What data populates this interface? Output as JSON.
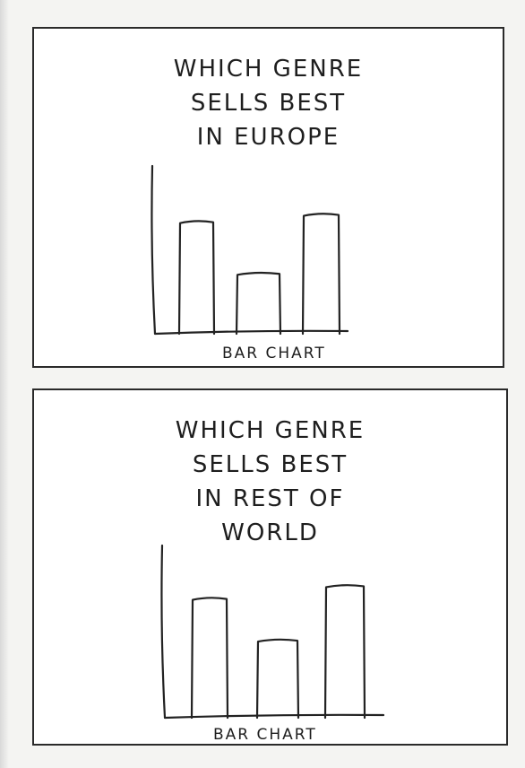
{
  "chart_data": [
    {
      "type": "bar",
      "title": "WHICH GENRE SELLS BEST IN EUROPE",
      "title_lines": [
        "WHICH GENRE",
        "SELLS BEST",
        "IN EUROPE"
      ],
      "xlabel": "BAR CHART",
      "categories": [
        "",
        "",
        ""
      ],
      "values": [
        124,
        67,
        132
      ],
      "ylim": [
        0,
        185
      ],
      "grid": false,
      "legend": "none"
    },
    {
      "type": "bar",
      "title": "WHICH GENRE SELLS BEST IN REST OF WORLD",
      "title_lines": [
        "WHICH GENRE",
        "SELLS BEST",
        "IN REST OF",
        "WORLD"
      ],
      "xlabel": "BAR CHART",
      "categories": [
        "",
        "",
        ""
      ],
      "values": [
        132,
        86,
        146
      ],
      "ylim": [
        0,
        190
      ],
      "grid": false,
      "legend": "none"
    }
  ]
}
